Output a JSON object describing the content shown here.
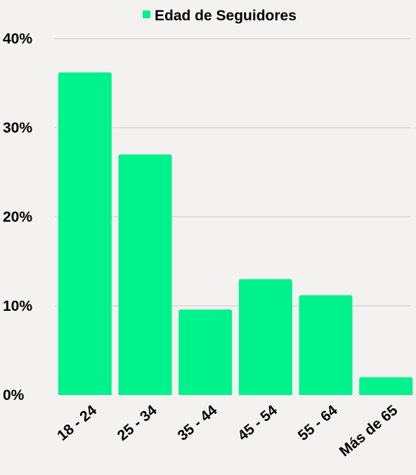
{
  "chart_data": {
    "type": "bar",
    "categories": [
      "18 - 24",
      "25 - 34",
      "35 - 44",
      "45 - 54",
      "55 - 64",
      "Más de 65"
    ],
    "series": [
      {
        "name": "Edad de Seguidores",
        "values": [
          36.2,
          27.0,
          9.6,
          13.0,
          11.2,
          2.0
        ]
      }
    ],
    "ylim": [
      0,
      40
    ],
    "yticks": [
      0,
      10,
      20,
      30,
      40
    ],
    "ytick_labels": [
      "0%",
      "10%",
      "20%",
      "30%",
      "40%"
    ],
    "grid": true,
    "legend_position": "top",
    "colors": {
      "bar": "#00f28c",
      "background": "#f3f2f0",
      "grid": "#c9c9c9"
    }
  }
}
